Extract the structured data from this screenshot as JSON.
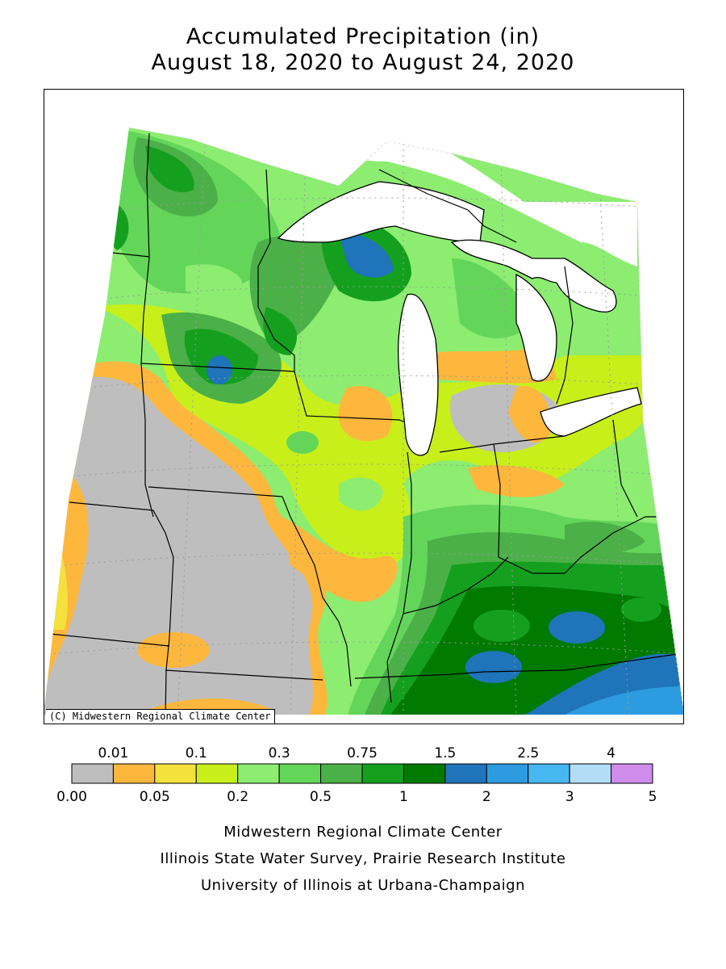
{
  "title_line1": "Accumulated Precipitation (in)",
  "title_line2": "August 18, 2020 to August 24, 2020",
  "map_credit": "(C) Midwestern Regional Climate Center",
  "legend": {
    "bins": [
      {
        "color": "#bebebe"
      },
      {
        "color": "#fdb73d"
      },
      {
        "color": "#f3e23b"
      },
      {
        "color": "#c8ef1a"
      },
      {
        "color": "#8ced71"
      },
      {
        "color": "#63d65a"
      },
      {
        "color": "#4bb048"
      },
      {
        "color": "#14a01e"
      },
      {
        "color": "#007a00"
      },
      {
        "color": "#1f74ba"
      },
      {
        "color": "#2d9be0"
      },
      {
        "color": "#46b7f0"
      },
      {
        "color": "#b5dcf7"
      },
      {
        "color": "#d08ceb"
      }
    ],
    "top_labels": [
      "0.01",
      "0.1",
      "0.3",
      "0.75",
      "1.5",
      "2.5",
      "4"
    ],
    "bottom_labels": [
      "0.00",
      "0.05",
      "0.2",
      "0.5",
      "1",
      "2",
      "3",
      "5"
    ]
  },
  "footer": {
    "line1": "Midwestern Regional Climate Center",
    "line2": "Illinois State Water Survey, Prairie Research Institute",
    "line3": "University of Illinois at Urbana-Champaign"
  }
}
